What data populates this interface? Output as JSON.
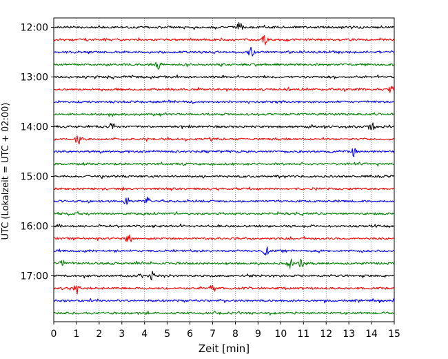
{
  "chart_data": {
    "type": "line",
    "title": "",
    "xlabel": "Zeit  [min]",
    "ylabel": "UTC (Lokalzeit = UTC + 02:00)",
    "xlim": [
      0,
      15
    ],
    "xticks": [
      0,
      1,
      2,
      3,
      4,
      5,
      6,
      7,
      8,
      9,
      10,
      11,
      12,
      13,
      14,
      15
    ],
    "xgrid": "dotted",
    "trace_interval_min": 15,
    "start_time": "12:00",
    "end_time": "17:45",
    "yticks": [
      "12:00",
      "13:00",
      "14:00",
      "15:00",
      "16:00",
      "17:00"
    ],
    "color_cycle": [
      "#000000",
      "#ff0000",
      "#0000ff",
      "#008000"
    ],
    "traces": [
      {
        "time": "12:00",
        "color": "#000000",
        "events_min": [
          8.2
        ]
      },
      {
        "time": "12:15",
        "color": "#ff0000",
        "events_min": [
          9.3
        ]
      },
      {
        "time": "12:30",
        "color": "#0000ff",
        "events_min": [
          8.7
        ]
      },
      {
        "time": "12:45",
        "color": "#008000",
        "events_min": [
          4.6
        ]
      },
      {
        "time": "13:00",
        "color": "#000000",
        "events_min": []
      },
      {
        "time": "13:15",
        "color": "#ff0000",
        "events_min": [
          14.9
        ]
      },
      {
        "time": "13:30",
        "color": "#0000ff",
        "events_min": []
      },
      {
        "time": "13:45",
        "color": "#008000",
        "events_min": []
      },
      {
        "time": "14:00",
        "color": "#000000",
        "events_min": [
          2.6,
          14.0
        ]
      },
      {
        "time": "14:15",
        "color": "#ff0000",
        "events_min": [
          1.1
        ]
      },
      {
        "time": "14:30",
        "color": "#0000ff",
        "events_min": [
          13.2
        ]
      },
      {
        "time": "14:45",
        "color": "#008000",
        "events_min": []
      },
      {
        "time": "15:00",
        "color": "#000000",
        "events_min": []
      },
      {
        "time": "15:15",
        "color": "#ff0000",
        "events_min": []
      },
      {
        "time": "15:30",
        "color": "#0000ff",
        "events_min": [
          3.2,
          4.1
        ]
      },
      {
        "time": "15:45",
        "color": "#008000",
        "events_min": []
      },
      {
        "time": "16:00",
        "color": "#000000",
        "events_min": []
      },
      {
        "time": "16:15",
        "color": "#ff0000",
        "events_min": [
          3.3
        ]
      },
      {
        "time": "16:30",
        "color": "#0000ff",
        "events_min": [
          9.35
        ]
      },
      {
        "time": "16:45",
        "color": "#008000",
        "events_min": [
          0.4,
          10.4,
          10.9
        ]
      },
      {
        "time": "17:00",
        "color": "#000000",
        "events_min": [
          4.3
        ]
      },
      {
        "time": "17:15",
        "color": "#ff0000",
        "events_min": [
          1.0,
          7.0
        ]
      },
      {
        "time": "17:30",
        "color": "#0000ff",
        "events_min": []
      },
      {
        "time": "17:45",
        "color": "#008000",
        "events_min": []
      }
    ]
  }
}
